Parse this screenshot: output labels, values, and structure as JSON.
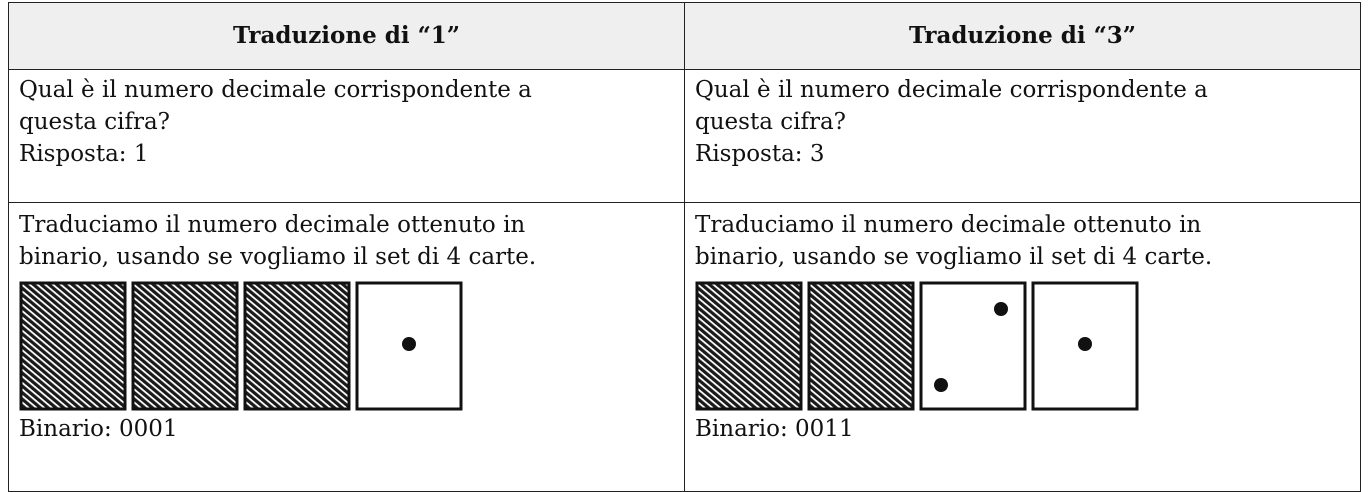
{
  "table": {
    "header": [
      "Traduzione di “1”",
      "Traduzione di “3”"
    ],
    "rows": [
      [
        {
          "lines": [
            "Qual è il numero decimale corrispondente a",
            "questa cifra?",
            "Risposta: 1"
          ]
        },
        {
          "lines": [
            "Qual è il numero decimale corrispondente a",
            "questa cifra?",
            "Risposta: 3"
          ]
        }
      ],
      [
        {
          "lines": [
            "Traduciamo il numero decimale ottenuto in",
            "binario, usando se vogliamo il set di 4 carte."
          ],
          "result": "Binario: 0001"
        },
        {
          "lines": [
            "Traduciamo il numero decimale ottenuto in",
            "binario, usando se vogliamo il set di 4 carte."
          ],
          "result": "Binario: 0011"
        }
      ]
    ]
  }
}
